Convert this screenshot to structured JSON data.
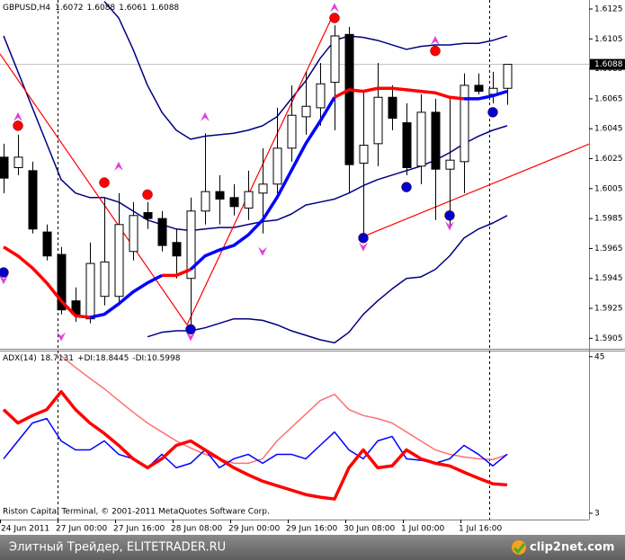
{
  "chart_data": [
    {
      "type": "candlestick",
      "title": "GBPUSD,H4",
      "categories": [
        "24 Jun 2011",
        null,
        null,
        null,
        "27 Jun 00:00",
        null,
        null,
        null,
        "27 Jun 16:00",
        null,
        null,
        null,
        "28 Jun 08:00",
        null,
        null,
        null,
        "29 Jun 00:00",
        null,
        null,
        null,
        "29 Jun 16:00",
        null,
        null,
        null,
        "30 Jun 08:00",
        null,
        null,
        null,
        "1 Jul 00:00",
        null,
        null,
        null,
        "1 Jul 16:00",
        null,
        null,
        null
      ],
      "open": [
        1.6026,
        1.6019,
        1.6017,
        1.5976,
        1.5961,
        1.593,
        1.5918,
        1.5933,
        1.5933,
        1.5963,
        1.5989,
        1.5985,
        1.5969,
        1.5945,
        1.599,
        1.6003,
        1.5999,
        1.5992,
        1.6002,
        1.6008,
        1.6032,
        1.6053,
        1.6059,
        1.6076,
        1.6108,
        1.6022,
        1.6035,
        1.6066,
        1.6049,
        1.602,
        1.6056,
        1.6018,
        1.6023,
        1.6074,
        1.6068,
        1.6072
      ],
      "high": [
        1.6035,
        1.6041,
        1.6023,
        1.5981,
        1.5966,
        1.5939,
        1.5969,
        1.5999,
        1.6002,
        1.5996,
        1.5996,
        1.599,
        1.5978,
        1.5999,
        1.6042,
        1.6014,
        1.6008,
        1.6017,
        1.6032,
        1.6059,
        1.6074,
        1.6083,
        1.6089,
        1.6114,
        1.6113,
        1.6071,
        1.6089,
        1.6074,
        1.6062,
        1.6068,
        1.6065,
        1.6065,
        1.6082,
        1.6082,
        1.6083,
        1.6088
      ],
      "low": [
        1.6002,
        1.6014,
        1.5975,
        1.5957,
        1.5921,
        1.5916,
        1.5915,
        1.5927,
        1.5927,
        1.5957,
        1.5978,
        1.5963,
        1.5945,
        1.5912,
        1.5981,
        1.5981,
        1.5987,
        1.5984,
        1.5975,
        1.6002,
        1.6023,
        1.6041,
        1.6047,
        1.6044,
        1.6002,
        1.5974,
        1.602,
        1.6044,
        1.6014,
        1.6008,
        1.5984,
        1.5978,
        1.6002,
        1.6068,
        1.6062,
        1.6061
      ],
      "close": [
        1.6012,
        1.6026,
        1.5978,
        1.596,
        1.5924,
        1.5921,
        1.5955,
        1.5956,
        1.5981,
        1.5987,
        1.5985,
        1.5967,
        1.596,
        1.599,
        1.6003,
        1.5998,
        1.5993,
        1.6003,
        1.6008,
        1.6032,
        1.6054,
        1.606,
        1.6075,
        1.6107,
        1.6021,
        1.6034,
        1.6066,
        1.6052,
        1.6019,
        1.6056,
        1.6018,
        1.6024,
        1.6074,
        1.607,
        1.6072,
        1.6088
      ],
      "up_color": "#ffffff",
      "down_color": "#000000",
      "ylim": [
        1.5898,
        1.6131
      ],
      "yticks": [
        1.6125,
        1.6105,
        1.6085,
        1.6065,
        1.6045,
        1.6025,
        1.6005,
        1.5985,
        1.5965,
        1.5945,
        1.5925,
        1.5905
      ],
      "series": [
        {
          "style": "line",
          "color": "#000080",
          "values": [
            null,
            null,
            null,
            null,
            null,
            null,
            null,
            1.613,
            1.6119,
            1.6098,
            1.6074,
            1.6056,
            1.6044,
            1.6038,
            1.604,
            1.6041,
            1.6042,
            1.6044,
            1.6047,
            1.6053,
            1.6065,
            1.6077,
            1.6092,
            1.6104,
            1.6107,
            1.6106,
            1.6104,
            1.6101,
            1.6098,
            1.61,
            1.6101,
            1.6101,
            1.6102,
            1.6102,
            1.6104,
            1.6107
          ]
        },
        {
          "style": "line",
          "color": "#000080",
          "values": [
            1.6107,
            1.6083,
            1.6059,
            1.6035,
            1.6011,
            1.6002,
            1.5999,
            1.5999,
            1.5996,
            1.599,
            1.5984,
            1.5981,
            1.5978,
            1.5977,
            1.5978,
            1.5979,
            1.5979,
            1.5981,
            1.5983,
            1.5984,
            1.5988,
            1.5994,
            1.5996,
            1.5998,
            1.6002,
            1.6007,
            1.6011,
            1.6014,
            1.6017,
            1.602,
            1.6024,
            1.6029,
            1.6035,
            1.604,
            1.6044,
            1.6047
          ]
        },
        {
          "style": "line",
          "color": "#000080",
          "values": [
            null,
            null,
            null,
            null,
            null,
            null,
            null,
            null,
            null,
            null,
            1.5906,
            1.5909,
            1.591,
            1.591,
            1.5912,
            1.5915,
            1.5918,
            1.5918,
            1.5917,
            1.5914,
            1.591,
            1.5907,
            1.5904,
            1.5902,
            1.5909,
            1.5921,
            1.593,
            1.5938,
            1.5945,
            1.5946,
            1.5951,
            1.596,
            1.5972,
            1.5978,
            1.5982,
            1.5987
          ]
        },
        {
          "style": "trendline",
          "color": "#ff0000",
          "x": [
            0,
            13
          ],
          "values": [
            1.6095,
            1.5914
          ]
        },
        {
          "style": "trendline",
          "color": "#ff0000",
          "x": [
            13,
            23
          ],
          "values": [
            1.5914,
            1.6118
          ]
        },
        {
          "style": "trendline",
          "color": "#ff0000",
          "x": [
            25,
            41
          ],
          "values": [
            1.5972,
            1.6035
          ]
        },
        {
          "style": "thick-line",
          "color": "#ff0000",
          "values": [
            1.5966,
            1.596,
            1.5952,
            1.5942,
            1.593,
            1.592,
            1.5919,
            null,
            null,
            null,
            null,
            1.5947,
            1.5947,
            1.5951,
            null,
            null,
            null,
            null,
            null,
            null,
            null,
            null,
            null,
            1.6066,
            1.6071,
            1.607,
            1.6072,
            1.6072,
            1.6071,
            1.607,
            1.6069,
            1.6066,
            1.6065,
            null,
            null,
            null
          ]
        },
        {
          "style": "thick-line",
          "color": "#0000ff",
          "values": [
            null,
            null,
            null,
            null,
            null,
            null,
            1.5919,
            1.5921,
            1.5928,
            1.5936,
            1.5942,
            1.5947,
            null,
            1.5951,
            1.596,
            1.5964,
            1.5967,
            1.5974,
            1.5984,
            1.5999,
            1.6017,
            1.6035,
            1.605,
            1.6066,
            null,
            null,
            null,
            null,
            null,
            null,
            null,
            null,
            1.6065,
            1.6065,
            1.6067,
            1.607
          ]
        },
        {
          "style": "dot",
          "color": "#ff0000",
          "values": [
            null,
            1.6047,
            null,
            null,
            null,
            null,
            null,
            1.6009,
            null,
            null,
            1.6001,
            null,
            null,
            null,
            null,
            null,
            null,
            null,
            null,
            null,
            null,
            null,
            null,
            1.6119,
            null,
            null,
            null,
            null,
            null,
            null,
            1.6097,
            null,
            null,
            null,
            null,
            null
          ]
        },
        {
          "style": "dot",
          "color": "#0000cc",
          "values": [
            1.5949,
            null,
            null,
            null,
            null,
            null,
            null,
            null,
            null,
            null,
            null,
            null,
            null,
            1.5911,
            null,
            null,
            null,
            null,
            null,
            null,
            null,
            null,
            null,
            null,
            null,
            1.5972,
            null,
            null,
            1.6006,
            null,
            null,
            1.5987,
            null,
            null,
            1.6056,
            null
          ]
        },
        {
          "style": "arrow-up",
          "color": "#e040e0",
          "values": [
            null,
            1.6053,
            null,
            null,
            null,
            null,
            null,
            null,
            1.602,
            null,
            null,
            null,
            null,
            null,
            1.6053,
            null,
            null,
            null,
            null,
            null,
            null,
            null,
            null,
            1.6126,
            null,
            null,
            null,
            null,
            null,
            null,
            1.6104,
            null,
            null,
            null,
            null,
            null
          ]
        },
        {
          "style": "arrow-down",
          "color": "#e040e0",
          "values": [
            1.5944,
            null,
            null,
            null,
            1.5906,
            null,
            null,
            null,
            null,
            null,
            null,
            null,
            null,
            1.5906,
            null,
            null,
            null,
            null,
            1.5963,
            null,
            null,
            null,
            null,
            null,
            null,
            1.5966,
            null,
            null,
            null,
            null,
            null,
            1.598,
            null,
            null,
            null,
            null
          ]
        }
      ]
    },
    {
      "type": "line",
      "ylim": [
        1.3,
        46.4
      ],
      "yticks": [
        45,
        3
      ],
      "series": [
        {
          "name": "ADX(14)",
          "color": "#ff7070",
          "style": "line",
          "values": [
            null,
            null,
            null,
            null,
            45.2,
            42.1,
            39.2,
            36.4,
            33.2,
            30.1,
            27.2,
            24.8,
            22.4,
            20.5,
            18.8,
            17.6,
            16.4,
            16.4,
            17.6,
            22.4,
            26.0,
            29.6,
            33.2,
            34.9,
            30.8,
            29.2,
            28.4,
            27.2,
            24.8,
            22.4,
            20.0,
            18.8,
            18.1,
            17.6,
            17.4,
            18.7131
          ]
        },
        {
          "name": "+DI:",
          "color": "#0000ff",
          "style": "line",
          "values": [
            17.6,
            22.4,
            27.2,
            28.4,
            22.4,
            20.0,
            20.0,
            22.4,
            18.8,
            17.6,
            15.2,
            18.8,
            15.2,
            16.4,
            20.0,
            15.2,
            17.6,
            18.8,
            16.4,
            18.8,
            18.8,
            17.6,
            21.2,
            24.8,
            20.0,
            17.6,
            22.4,
            23.6,
            17.6,
            17.2,
            16.4,
            17.6,
            21.2,
            18.8,
            15.7,
            18.8445
          ]
        },
        {
          "name": "-DI:",
          "color": "#ff0000",
          "style": "thick-line",
          "values": [
            30.8,
            27.2,
            29.2,
            30.8,
            35.6,
            30.8,
            27.2,
            24.4,
            21.2,
            17.6,
            15.2,
            17.6,
            21.2,
            22.4,
            20.0,
            17.6,
            15.2,
            13.3,
            11.6,
            10.4,
            9.2,
            8.0,
            7.3,
            6.8,
            15.2,
            20.0,
            15.2,
            15.7,
            20.0,
            17.6,
            16.4,
            15.7,
            14.0,
            12.4,
            10.9,
            10.5998
          ]
        }
      ]
    }
  ],
  "copyright": "Riston Capital Terminal, © 2001-2011 MetaQuotes Software Corp.",
  "watermark": {
    "left": "Элитный Трейдер, ELITETRADER.RU",
    "right": "clip2net.com"
  }
}
